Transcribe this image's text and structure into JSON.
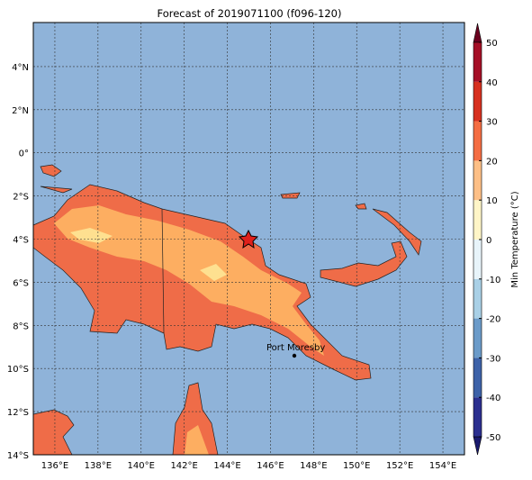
{
  "title": "Forecast of 2019071100 (f096-120)",
  "map": {
    "lon_ticks": [
      "136°E",
      "138°E",
      "140°E",
      "142°E",
      "144°E",
      "146°E",
      "148°E",
      "150°E",
      "152°E",
      "154°E"
    ],
    "lat_ticks": [
      "14°S",
      "12°S",
      "10°S",
      "8°S",
      "6°S",
      "4°S",
      "2°S",
      "0°",
      "2°N",
      "4°N"
    ],
    "places": [
      {
        "label": "Port Moresby"
      }
    ]
  },
  "colorbar": {
    "label": "Min Temperature (°C)",
    "ticks": [
      -50,
      -40,
      -30,
      -20,
      -10,
      0,
      10,
      20,
      30,
      40,
      50
    ],
    "colors": [
      "#1a1a6e",
      "#2b2f8f",
      "#3d62a8",
      "#6b9bc9",
      "#a9d0e6",
      "#e8f4fa",
      "#fff5c7",
      "#fdbf86",
      "#f46d43",
      "#d7301f",
      "#a50f26",
      "#6b001f"
    ]
  }
}
